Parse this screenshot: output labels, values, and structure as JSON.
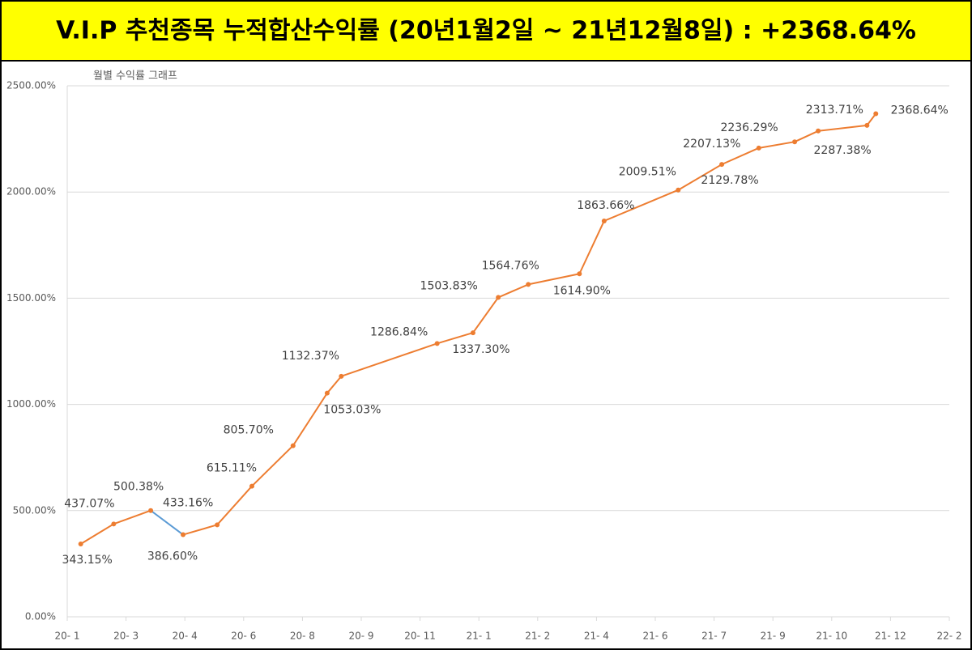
{
  "chart_data": {
    "type": "line",
    "title": "V.I.P 추천종목 누적합산수익률 (20년1월2일 ~ 21년12월8일) : +2368.64%",
    "subtitle": "월별 수익률 그래프",
    "x": [
      0.23,
      0.79,
      1.42,
      1.97,
      2.55,
      3.14,
      3.84,
      4.42,
      4.66,
      6.29,
      6.9,
      7.33,
      7.84,
      8.71,
      9.13,
      10.39,
      11.13,
      11.76,
      12.37,
      12.77,
      13.6,
      13.75
    ],
    "values": [
      343.15,
      437.07,
      500.38,
      386.6,
      433.16,
      615.11,
      805.7,
      1053.03,
      1132.37,
      1286.84,
      1337.3,
      1503.83,
      1564.76,
      1614.9,
      1863.66,
      2009.51,
      2129.78,
      2207.13,
      2236.29,
      2287.38,
      2313.71,
      2368.64
    ],
    "value_labels": [
      "343.15%",
      "437.07%",
      "500.38%",
      "386.60%",
      "433.16%",
      "615.11%",
      "805.70%",
      "1053.03%",
      "1132.37%",
      "1286.84%",
      "1337.30%",
      "1503.83%",
      "1564.76%",
      "1614.90%",
      "1863.66%",
      "2009.51%",
      "2129.78%",
      "2207.13%",
      "2236.29%",
      "2287.38%",
      "2313.71%",
      "2368.64%"
    ],
    "color": "#ed7d31",
    "segment_colors": [
      "#ed7d31",
      "#ed7d31",
      "#5b9bd5",
      "#ed7d31",
      "#ed7d31",
      "#ed7d31",
      "#ed7d31",
      "#ed7d31",
      "#ed7d31",
      "#ed7d31",
      "#ed7d31",
      "#ed7d31",
      "#ed7d31",
      "#ed7d31",
      "#ed7d31",
      "#ed7d31",
      "#ed7d31",
      "#ed7d31",
      "#ed7d31",
      "#ed7d31",
      "#ed7d31"
    ],
    "xlim": [
      0,
      15
    ],
    "xticks": [
      {
        "value": 0,
        "label": "20- 1"
      },
      {
        "value": 1,
        "label": "20- 3"
      },
      {
        "value": 2,
        "label": "20- 4"
      },
      {
        "value": 3,
        "label": "20- 6"
      },
      {
        "value": 4,
        "label": "20- 8"
      },
      {
        "value": 5,
        "label": "20- 9"
      },
      {
        "value": 6,
        "label": "20- 11"
      },
      {
        "value": 7,
        "label": "21- 1"
      },
      {
        "value": 8,
        "label": "21- 2"
      },
      {
        "value": 9,
        "label": "21- 4"
      },
      {
        "value": 10,
        "label": "21- 6"
      },
      {
        "value": 11,
        "label": "21- 7"
      },
      {
        "value": 12,
        "label": "21- 9"
      },
      {
        "value": 13,
        "label": "21- 10"
      },
      {
        "value": 14,
        "label": "21- 12"
      },
      {
        "value": 15,
        "label": "22- 2"
      }
    ],
    "ylim": [
      0,
      2500
    ],
    "yticks": [
      {
        "value": 0,
        "label": "0.00%"
      },
      {
        "value": 500,
        "label": "500.00%"
      },
      {
        "value": 1000,
        "label": "1000.00%"
      },
      {
        "value": 1500,
        "label": "1500.00%"
      },
      {
        "value": 2000,
        "label": "2000.00%"
      },
      {
        "value": 2500,
        "label": "2500.00%"
      }
    ],
    "grid": true
  }
}
